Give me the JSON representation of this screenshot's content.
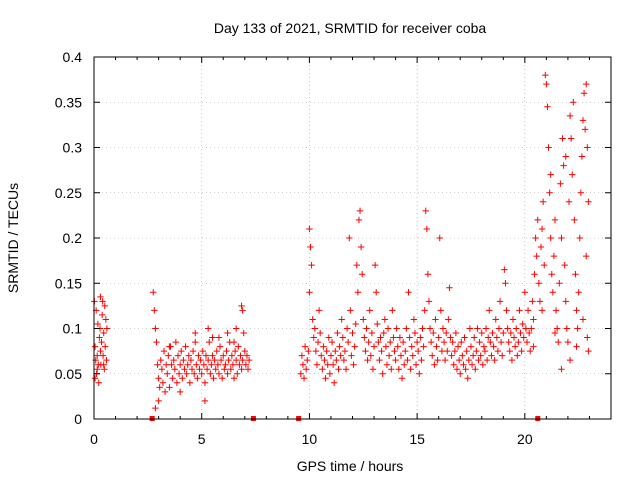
{
  "chart_data": {
    "type": "scatter",
    "title": "Day 133 of 2021, SRMTID for receiver coba",
    "xlabel": "GPS time / hours",
    "ylabel": "SRMTID / TECUs",
    "xlim": [
      0,
      24
    ],
    "ylim": [
      0,
      0.4
    ],
    "grid": true,
    "marker": "plus",
    "color": "#ff0000",
    "x_ticks": [
      {
        "value": 0,
        "label": "0"
      },
      {
        "value": 5,
        "label": "5"
      },
      {
        "value": 10,
        "label": "10"
      },
      {
        "value": 15,
        "label": "15"
      },
      {
        "value": 20,
        "label": "20"
      }
    ],
    "y_ticks": [
      {
        "value": 0,
        "label": "0"
      },
      {
        "value": 0.05,
        "label": "0.05"
      },
      {
        "value": 0.1,
        "label": "0.1"
      },
      {
        "value": 0.15,
        "label": "0.15"
      },
      {
        "value": 0.2,
        "label": "0.2"
      },
      {
        "value": 0.25,
        "label": "0.25"
      },
      {
        "value": 0.3,
        "label": "0.3"
      },
      {
        "value": 0.35,
        "label": "0.35"
      },
      {
        "value": 0.4,
        "label": "0.4"
      }
    ],
    "zero_markers_x": [
      2.7,
      7.4,
      9.5,
      20.6
    ],
    "points": [
      [
        0.02,
        0.13
      ],
      [
        0.05,
        0.045
      ],
      [
        0.08,
        0.065
      ],
      [
        0.1,
        0.12
      ],
      [
        0.12,
        0.05
      ],
      [
        0.15,
        0.07
      ],
      [
        0.18,
        0.105
      ],
      [
        0.2,
        0.06
      ],
      [
        0.22,
        0.04
      ],
      [
        0.25,
        0.09
      ],
      [
        0.28,
        0.1
      ],
      [
        0.3,
        0.135
      ],
      [
        0.32,
        0.06
      ],
      [
        0.35,
        0.085
      ],
      [
        0.38,
        0.115
      ],
      [
        0.4,
        0.13
      ],
      [
        0.42,
        0.07
      ],
      [
        0.45,
        0.095
      ],
      [
        0.48,
        0.055
      ],
      [
        0.5,
        0.125
      ],
      [
        0.52,
        0.08
      ],
      [
        0.55,
        0.11
      ],
      [
        0.58,
        0.065
      ],
      [
        0.6,
        0.1
      ],
      [
        0.05,
        0.08
      ],
      [
        0.15,
        0.055
      ],
      [
        0.3,
        0.075
      ],
      [
        0.45,
        0.06
      ],
      [
        2.75,
        0.14
      ],
      [
        2.8,
        0.12
      ],
      [
        2.85,
        0.1
      ],
      [
        2.9,
        0.085
      ],
      [
        2.95,
        0.06
      ],
      [
        3.0,
        0.045
      ],
      [
        3.05,
        0.035
      ],
      [
        3.0,
        0.02
      ],
      [
        2.85,
        0.012
      ],
      [
        3.1,
        0.065
      ],
      [
        3.15,
        0.055
      ],
      [
        3.2,
        0.04
      ],
      [
        3.25,
        0.075
      ],
      [
        3.3,
        0.03
      ],
      [
        3.35,
        0.06
      ],
      [
        3.4,
        0.05
      ],
      [
        3.45,
        0.07
      ],
      [
        3.5,
        0.035
      ],
      [
        3.55,
        0.08
      ],
      [
        3.6,
        0.06
      ],
      [
        3.65,
        0.045
      ],
      [
        3.7,
        0.065
      ],
      [
        3.75,
        0.055
      ],
      [
        3.8,
        0.085
      ],
      [
        3.85,
        0.04
      ],
      [
        3.9,
        0.07
      ],
      [
        3.95,
        0.05
      ],
      [
        4.0,
        0.06
      ],
      [
        4.05,
        0.075
      ],
      [
        4.1,
        0.045
      ],
      [
        4.15,
        0.065
      ],
      [
        4.2,
        0.055
      ],
      [
        4.25,
        0.08
      ],
      [
        4.3,
        0.05
      ],
      [
        4.35,
        0.06
      ],
      [
        4.4,
        0.07
      ],
      [
        4.45,
        0.04
      ],
      [
        4.5,
        0.065
      ],
      [
        4.55,
        0.055
      ],
      [
        4.6,
        0.075
      ],
      [
        4.65,
        0.05
      ],
      [
        4.7,
        0.085
      ],
      [
        4.75,
        0.06
      ],
      [
        4.8,
        0.045
      ],
      [
        4.85,
        0.07
      ],
      [
        4.9,
        0.055
      ],
      [
        4.95,
        0.065
      ],
      [
        5.0,
        0.05
      ],
      [
        5.05,
        0.075
      ],
      [
        5.1,
        0.06
      ],
      [
        5.15,
        0.04
      ],
      [
        5.2,
        0.07
      ],
      [
        5.25,
        0.055
      ],
      [
        5.3,
        0.065
      ],
      [
        5.35,
        0.085
      ],
      [
        5.4,
        0.05
      ],
      [
        5.45,
        0.06
      ],
      [
        5.5,
        0.07
      ],
      [
        5.55,
        0.045
      ],
      [
        5.6,
        0.065
      ],
      [
        5.65,
        0.055
      ],
      [
        5.7,
        0.075
      ],
      [
        5.75,
        0.06
      ],
      [
        5.8,
        0.05
      ],
      [
        5.85,
        0.08
      ],
      [
        5.9,
        0.065
      ],
      [
        5.95,
        0.045
      ],
      [
        6.0,
        0.07
      ],
      [
        6.05,
        0.055
      ],
      [
        6.1,
        0.06
      ],
      [
        6.15,
        0.075
      ],
      [
        6.2,
        0.05
      ],
      [
        6.25,
        0.065
      ],
      [
        6.3,
        0.085
      ],
      [
        6.35,
        0.055
      ],
      [
        6.4,
        0.07
      ],
      [
        6.45,
        0.06
      ],
      [
        6.5,
        0.045
      ],
      [
        6.55,
        0.075
      ],
      [
        6.6,
        0.065
      ],
      [
        6.65,
        0.05
      ],
      [
        6.7,
        0.08
      ],
      [
        6.75,
        0.06
      ],
      [
        6.8,
        0.07
      ],
      [
        6.85,
        0.055
      ],
      [
        6.9,
        0.065
      ],
      [
        6.95,
        0.095
      ],
      [
        7.0,
        0.075
      ],
      [
        7.05,
        0.06
      ],
      [
        7.1,
        0.07
      ],
      [
        7.15,
        0.055
      ],
      [
        7.2,
        0.065
      ],
      [
        6.85,
        0.125
      ],
      [
        6.9,
        0.12
      ],
      [
        5.15,
        0.02
      ],
      [
        4.0,
        0.03
      ],
      [
        5.5,
        0.09
      ],
      [
        6.2,
        0.095
      ],
      [
        3.5,
        0.08
      ],
      [
        4.7,
        0.095
      ],
      [
        5.8,
        0.09
      ],
      [
        6.5,
        0.085
      ],
      [
        6.6,
        0.1
      ],
      [
        5.3,
        0.1
      ],
      [
        9.6,
        0.05
      ],
      [
        9.65,
        0.07
      ],
      [
        9.7,
        0.06
      ],
      [
        9.75,
        0.045
      ],
      [
        9.8,
        0.08
      ],
      [
        9.85,
        0.055
      ],
      [
        9.9,
        0.065
      ],
      [
        9.95,
        0.075
      ],
      [
        10.0,
        0.21
      ],
      [
        10.05,
        0.19
      ],
      [
        10.1,
        0.17
      ],
      [
        10.0,
        0.14
      ],
      [
        10.15,
        0.11
      ],
      [
        10.2,
        0.09
      ],
      [
        10.25,
        0.1
      ],
      [
        10.3,
        0.075
      ],
      [
        10.35,
        0.06
      ],
      [
        10.4,
        0.085
      ],
      [
        10.45,
        0.12
      ],
      [
        10.5,
        0.095
      ],
      [
        10.55,
        0.07
      ],
      [
        10.6,
        0.055
      ],
      [
        10.65,
        0.08
      ],
      [
        10.7,
        0.065
      ],
      [
        10.75,
        0.045
      ],
      [
        10.8,
        0.075
      ],
      [
        10.85,
        0.06
      ],
      [
        10.9,
        0.09
      ],
      [
        10.95,
        0.05
      ],
      [
        11.0,
        0.07
      ],
      [
        11.05,
        0.085
      ],
      [
        11.1,
        0.06
      ],
      [
        11.15,
        0.04
      ],
      [
        11.2,
        0.075
      ],
      [
        11.25,
        0.065
      ],
      [
        11.3,
        0.095
      ],
      [
        11.35,
        0.055
      ],
      [
        11.4,
        0.08
      ],
      [
        11.45,
        0.07
      ],
      [
        11.5,
        0.11
      ],
      [
        11.55,
        0.09
      ],
      [
        11.6,
        0.065
      ],
      [
        11.65,
        0.075
      ],
      [
        11.7,
        0.055
      ],
      [
        11.75,
        0.1
      ],
      [
        11.8,
        0.085
      ],
      [
        11.85,
        0.2
      ],
      [
        11.9,
        0.12
      ],
      [
        11.95,
        0.07
      ],
      [
        12.0,
        0.095
      ],
      [
        12.05,
        0.06
      ],
      [
        12.1,
        0.08
      ],
      [
        12.15,
        0.105
      ],
      [
        12.2,
        0.17
      ],
      [
        12.25,
        0.14
      ],
      [
        12.3,
        0.22
      ],
      [
        12.35,
        0.23
      ],
      [
        12.4,
        0.19
      ],
      [
        12.45,
        0.16
      ],
      [
        12.5,
        0.11
      ],
      [
        12.55,
        0.09
      ],
      [
        12.6,
        0.075
      ],
      [
        12.65,
        0.1
      ],
      [
        12.7,
        0.065
      ],
      [
        12.75,
        0.085
      ],
      [
        12.8,
        0.12
      ],
      [
        12.85,
        0.07
      ],
      [
        12.9,
        0.095
      ],
      [
        12.95,
        0.055
      ],
      [
        13.0,
        0.08
      ],
      [
        13.05,
        0.17
      ],
      [
        13.1,
        0.14
      ],
      [
        13.15,
        0.105
      ],
      [
        13.2,
        0.085
      ],
      [
        13.25,
        0.065
      ],
      [
        13.3,
        0.09
      ],
      [
        13.35,
        0.075
      ],
      [
        13.4,
        0.05
      ],
      [
        13.45,
        0.095
      ],
      [
        13.5,
        0.11
      ],
      [
        13.55,
        0.08
      ],
      [
        13.6,
        0.06
      ],
      [
        13.65,
        0.1
      ],
      [
        13.7,
        0.07
      ],
      [
        13.75,
        0.085
      ],
      [
        13.8,
        0.055
      ],
      [
        13.85,
        0.12
      ],
      [
        13.9,
        0.09
      ],
      [
        13.95,
        0.075
      ],
      [
        14.0,
        0.065
      ],
      [
        14.05,
        0.1
      ],
      [
        14.1,
        0.08
      ],
      [
        14.15,
        0.055
      ],
      [
        14.2,
        0.09
      ],
      [
        14.25,
        0.07
      ],
      [
        14.3,
        0.045
      ],
      [
        14.35,
        0.085
      ],
      [
        14.4,
        0.06
      ],
      [
        14.45,
        0.075
      ],
      [
        14.5,
        0.1
      ],
      [
        14.55,
        0.065
      ],
      [
        14.6,
        0.14
      ],
      [
        14.65,
        0.09
      ],
      [
        14.7,
        0.055
      ],
      [
        14.75,
        0.08
      ],
      [
        14.8,
        0.07
      ],
      [
        14.85,
        0.11
      ],
      [
        14.9,
        0.095
      ],
      [
        14.95,
        0.06
      ],
      [
        15.0,
        0.085
      ],
      [
        15.05,
        0.075
      ],
      [
        15.1,
        0.05
      ],
      [
        15.15,
        0.09
      ],
      [
        15.2,
        0.065
      ],
      [
        15.25,
        0.1
      ],
      [
        15.3,
        0.08
      ],
      [
        15.35,
        0.12
      ],
      [
        15.4,
        0.23
      ],
      [
        15.45,
        0.21
      ],
      [
        15.5,
        0.16
      ],
      [
        15.55,
        0.13
      ],
      [
        15.6,
        0.1
      ],
      [
        15.65,
        0.085
      ],
      [
        15.7,
        0.07
      ],
      [
        15.75,
        0.095
      ],
      [
        15.8,
        0.06
      ],
      [
        15.85,
        0.11
      ],
      [
        15.9,
        0.08
      ],
      [
        15.95,
        0.065
      ],
      [
        16.0,
        0.09
      ],
      [
        16.05,
        0.2
      ],
      [
        16.1,
        0.12
      ],
      [
        16.15,
        0.075
      ],
      [
        16.2,
        0.1
      ],
      [
        16.25,
        0.085
      ],
      [
        16.3,
        0.065
      ],
      [
        16.35,
        0.095
      ],
      [
        16.4,
        0.075
      ],
      [
        16.45,
        0.11
      ],
      [
        16.5,
        0.145
      ],
      [
        16.55,
        0.09
      ],
      [
        16.6,
        0.07
      ],
      [
        16.65,
        0.085
      ],
      [
        16.7,
        0.06
      ],
      [
        16.75,
        0.075
      ],
      [
        16.8,
        0.095
      ],
      [
        16.85,
        0.055
      ],
      [
        16.9,
        0.08
      ],
      [
        16.95,
        0.065
      ],
      [
        17.0,
        0.05
      ],
      [
        17.05,
        0.085
      ],
      [
        17.1,
        0.07
      ],
      [
        17.15,
        0.06
      ],
      [
        17.2,
        0.09
      ],
      [
        17.25,
        0.055
      ],
      [
        17.3,
        0.075
      ],
      [
        17.35,
        0.045
      ],
      [
        17.4,
        0.065
      ],
      [
        17.45,
        0.1
      ],
      [
        17.5,
        0.08
      ],
      [
        17.55,
        0.06
      ],
      [
        17.6,
        0.07
      ],
      [
        17.65,
        0.09
      ],
      [
        17.7,
        0.055
      ],
      [
        17.75,
        0.075
      ],
      [
        17.8,
        0.1
      ],
      [
        17.85,
        0.065
      ],
      [
        17.9,
        0.085
      ],
      [
        17.95,
        0.07
      ],
      [
        18.0,
        0.095
      ],
      [
        18.05,
        0.06
      ],
      [
        18.1,
        0.08
      ],
      [
        18.15,
        0.075
      ],
      [
        18.2,
        0.1
      ],
      [
        18.25,
        0.065
      ],
      [
        18.3,
        0.09
      ],
      [
        18.35,
        0.12
      ],
      [
        18.4,
        0.085
      ],
      [
        18.45,
        0.07
      ],
      [
        18.5,
        0.095
      ],
      [
        18.55,
        0.08
      ],
      [
        18.6,
        0.065
      ],
      [
        18.65,
        0.11
      ],
      [
        18.7,
        0.09
      ],
      [
        18.75,
        0.075
      ],
      [
        18.8,
        0.1
      ],
      [
        18.85,
        0.13
      ],
      [
        18.9,
        0.085
      ],
      [
        18.95,
        0.07
      ],
      [
        19.0,
        0.095
      ],
      [
        19.05,
        0.165
      ],
      [
        19.1,
        0.15
      ],
      [
        19.15,
        0.12
      ],
      [
        19.2,
        0.1
      ],
      [
        19.25,
        0.085
      ],
      [
        19.3,
        0.075
      ],
      [
        19.35,
        0.095
      ],
      [
        19.4,
        0.065
      ],
      [
        19.45,
        0.11
      ],
      [
        19.5,
        0.09
      ],
      [
        19.55,
        0.08
      ],
      [
        19.6,
        0.1
      ],
      [
        19.65,
        0.07
      ],
      [
        19.7,
        0.085
      ],
      [
        19.75,
        0.12
      ],
      [
        19.8,
        0.095
      ],
      [
        19.85,
        0.075
      ],
      [
        19.9,
        0.105
      ],
      [
        19.95,
        0.09
      ],
      [
        20.0,
        0.14
      ],
      [
        20.05,
        0.1
      ],
      [
        20.1,
        0.085
      ],
      [
        20.15,
        0.12
      ],
      [
        20.2,
        0.095
      ],
      [
        20.25,
        0.075
      ],
      [
        20.3,
        0.1
      ],
      [
        20.35,
        0.13
      ],
      [
        20.4,
        0.11
      ],
      [
        20.45,
        0.16
      ],
      [
        20.5,
        0.2
      ],
      [
        20.55,
        0.18
      ],
      [
        20.6,
        0.22
      ],
      [
        20.65,
        0.15
      ],
      [
        20.7,
        0.13
      ],
      [
        20.75,
        0.19
      ],
      [
        20.8,
        0.21
      ],
      [
        20.85,
        0.24
      ],
      [
        20.9,
        0.17
      ],
      [
        20.95,
        0.38
      ],
      [
        21.0,
        0.37
      ],
      [
        21.05,
        0.345
      ],
      [
        21.1,
        0.3
      ],
      [
        21.15,
        0.25
      ],
      [
        21.2,
        0.2
      ],
      [
        21.25,
        0.16
      ],
      [
        21.3,
        0.14
      ],
      [
        21.35,
        0.18
      ],
      [
        21.4,
        0.22
      ],
      [
        21.45,
        0.12
      ],
      [
        21.5,
        0.1
      ],
      [
        21.55,
        0.085
      ],
      [
        21.6,
        0.15
      ],
      [
        21.65,
        0.26
      ],
      [
        21.7,
        0.2
      ],
      [
        21.75,
        0.31
      ],
      [
        21.8,
        0.28
      ],
      [
        21.85,
        0.17
      ],
      [
        21.9,
        0.13
      ],
      [
        21.95,
        0.1
      ],
      [
        22.0,
        0.085
      ],
      [
        22.05,
        0.24
      ],
      [
        22.1,
        0.335
      ],
      [
        22.15,
        0.31
      ],
      [
        22.2,
        0.27
      ],
      [
        22.25,
        0.35
      ],
      [
        22.3,
        0.22
      ],
      [
        22.35,
        0.16
      ],
      [
        22.4,
        0.12
      ],
      [
        22.45,
        0.1
      ],
      [
        22.5,
        0.14
      ],
      [
        22.55,
        0.2
      ],
      [
        22.6,
        0.25
      ],
      [
        22.65,
        0.29
      ],
      [
        22.7,
        0.33
      ],
      [
        22.75,
        0.36
      ],
      [
        22.8,
        0.32
      ],
      [
        22.85,
        0.37
      ],
      [
        22.9,
        0.3
      ],
      [
        22.95,
        0.24
      ],
      [
        22.85,
        0.18
      ],
      [
        22.9,
        0.09
      ],
      [
        22.95,
        0.075
      ],
      [
        22.7,
        0.11
      ],
      [
        21.9,
        0.29
      ],
      [
        21.2,
        0.27
      ],
      [
        20.8,
        0.12
      ],
      [
        20.4,
        0.08
      ],
      [
        21.7,
        0.055
      ],
      [
        22.1,
        0.065
      ],
      [
        22.4,
        0.08
      ],
      [
        21.4,
        0.095
      ]
    ]
  }
}
